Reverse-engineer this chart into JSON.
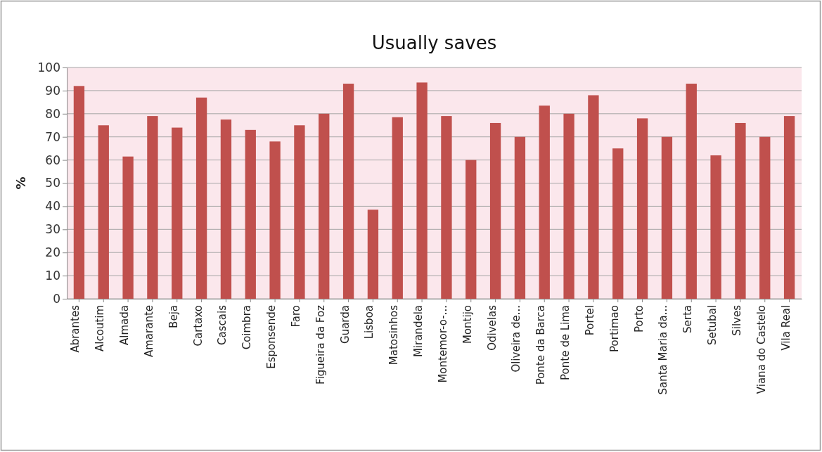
{
  "chart_data": {
    "type": "bar",
    "title": "Usually saves",
    "ylabel": "%",
    "categories": [
      "Abrantes",
      "Alcoutim",
      "Almada",
      "Amarante",
      "Beja",
      "Cartaxo",
      "Cascais",
      "Coimbra",
      "Esponsende",
      "Faro",
      "Figueira da Foz",
      "Guarda",
      "Lisboa",
      "Matosinhos",
      "Mirandela",
      "Montemor-o-...",
      "Montijo",
      "Odivelas",
      "Oliveira de...",
      "Ponte da Barca",
      "Ponte de Lima",
      "Portel",
      "Portimao",
      "Porto",
      "Santa Maria da...",
      "Serta",
      "Setubal",
      "Silves",
      "Viana do Castelo",
      "Vila Real"
    ],
    "values": [
      92,
      75,
      61.5,
      79,
      74,
      87,
      77.5,
      73,
      68,
      75,
      80,
      93,
      38.5,
      78.5,
      93.5,
      79,
      60,
      76,
      70,
      83.5,
      80,
      88,
      65,
      78,
      70,
      93,
      62,
      76,
      70,
      79
    ],
    "color": "#c0504d",
    "ylim": [
      0,
      100
    ],
    "yticks": [
      0,
      10,
      20,
      30,
      40,
      50,
      60,
      70,
      80,
      90,
      100
    ],
    "grid": "y"
  }
}
